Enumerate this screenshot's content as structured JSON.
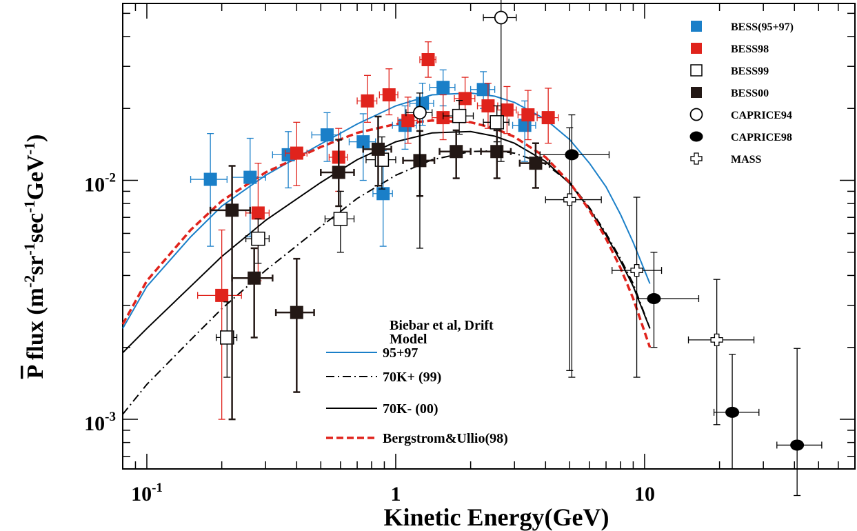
{
  "chart_data": {
    "type": "scatter",
    "title": "",
    "xlabel": "Kinetic Energy(GeV)",
    "ylabel_prefix": "P",
    "ylabel_rest": " flux (m",
    "ylabel_parts": [
      "-2",
      "sr",
      "-1",
      "sec",
      "-1",
      "GeV",
      "-1",
      ")"
    ],
    "x_scale": "log",
    "y_scale": "log",
    "xlim": [
      0.08,
      70
    ],
    "ylim": [
      0.00062,
      0.055
    ],
    "x_ticks": [
      {
        "value": 0.1,
        "label": "10",
        "exp": "-1"
      },
      {
        "value": 1,
        "label": "1",
        "exp": ""
      },
      {
        "value": 10,
        "label": "10",
        "exp": ""
      }
    ],
    "y_ticks": [
      {
        "value": 0.01,
        "label": "10",
        "exp": "-2"
      },
      {
        "value": 0.001,
        "label": "10",
        "exp": "-3"
      }
    ],
    "grid": false,
    "legend_position": "top-right",
    "series": [
      {
        "name": "BESS(95+97)",
        "marker": "square-filled",
        "color": "#1a7fc8",
        "points": [
          {
            "x": 0.18,
            "y": 0.0101,
            "xerr": [
              0.03,
              0.03
            ],
            "yerr": [
              0.0048,
              0.0056
            ]
          },
          {
            "x": 0.26,
            "y": 0.0103,
            "xerr": [
              0.04,
              0.04
            ],
            "yerr": [
              0.0045,
              0.0047
            ]
          },
          {
            "x": 0.37,
            "y": 0.0128,
            "xerr": [
              0.05,
              0.05
            ],
            "yerr": [
              0.0035,
              0.0032
            ]
          },
          {
            "x": 0.53,
            "y": 0.0155,
            "xerr": [
              0.07,
              0.07
            ],
            "yerr": [
              0.0035,
              0.0037
            ]
          },
          {
            "x": 0.74,
            "y": 0.0145,
            "xerr": [
              0.09,
              0.09
            ],
            "yerr": [
              0.0045,
              0.0045
            ]
          },
          {
            "x": 0.89,
            "y": 0.0088,
            "xerr": [
              0.08,
              0.08
            ],
            "yerr": [
              0.0035,
              0.0045
            ]
          },
          {
            "x": 1.09,
            "y": 0.017,
            "xerr": [
              0.12,
              0.12
            ],
            "yerr": [
              0.0035,
              0.0035
            ]
          },
          {
            "x": 1.28,
            "y": 0.021,
            "xerr": [
              0.14,
              0.14
            ],
            "yerr": [
              0.004,
              0.0045
            ]
          },
          {
            "x": 1.55,
            "y": 0.0245,
            "xerr": [
              0.18,
              0.18
            ],
            "yerr": [
              0.004,
              0.0045
            ]
          },
          {
            "x": 2.25,
            "y": 0.024,
            "xerr": [
              0.25,
              0.25
            ],
            "yerr": [
              0.004,
              0.0045
            ]
          },
          {
            "x": 3.3,
            "y": 0.017,
            "xerr": [
              0.35,
              0.35
            ],
            "yerr": [
              0.005,
              0.0045
            ]
          }
        ]
      },
      {
        "name": "BESS98",
        "marker": "square-filled",
        "color": "#e0231c",
        "points": [
          {
            "x": 0.2,
            "y": 0.0033,
            "xerr": [
              0.04,
              0.04
            ],
            "yerr": [
              0.0023,
              0.0029
            ]
          },
          {
            "x": 0.28,
            "y": 0.0073,
            "xerr": [
              0.03,
              0.03
            ],
            "yerr": [
              0.0035,
              0.0045
            ]
          },
          {
            "x": 0.4,
            "y": 0.013,
            "xerr": [
              0.04,
              0.04
            ],
            "yerr": [
              0.0035,
              0.0045
            ]
          },
          {
            "x": 0.59,
            "y": 0.0125,
            "xerr": [
              0.05,
              0.05
            ],
            "yerr": [
              0.0035,
              0.004
            ]
          },
          {
            "x": 0.77,
            "y": 0.0215,
            "xerr": [
              0.07,
              0.07
            ],
            "yerr": [
              0.004,
              0.006
            ]
          },
          {
            "x": 0.94,
            "y": 0.0228,
            "xerr": [
              0.08,
              0.08
            ],
            "yerr": [
              0.004,
              0.0065
            ]
          },
          {
            "x": 1.12,
            "y": 0.0178,
            "xerr": [
              0.1,
              0.1
            ],
            "yerr": [
              0.0035,
              0.0045
            ]
          },
          {
            "x": 1.35,
            "y": 0.032,
            "xerr": [
              0.1,
              0.1
            ],
            "yerr": [
              0.005,
              0.006
            ]
          },
          {
            "x": 1.55,
            "y": 0.0183,
            "xerr": [
              0.15,
              0.15
            ],
            "yerr": [
              0.0035,
              0.0045
            ]
          },
          {
            "x": 1.9,
            "y": 0.022,
            "xerr": [
              0.18,
              0.18
            ],
            "yerr": [
              0.0045,
              0.005
            ]
          },
          {
            "x": 2.35,
            "y": 0.0205,
            "xerr": [
              0.22,
              0.22
            ],
            "yerr": [
              0.004,
              0.005
            ]
          },
          {
            "x": 2.8,
            "y": 0.0197,
            "xerr": [
              0.25,
              0.25
            ],
            "yerr": [
              0.004,
              0.005
            ]
          },
          {
            "x": 3.4,
            "y": 0.0188,
            "xerr": [
              0.3,
              0.3
            ],
            "yerr": [
              0.004,
              0.005
            ]
          },
          {
            "x": 4.1,
            "y": 0.0183,
            "xerr": [
              0.4,
              0.4
            ],
            "yerr": [
              0.004,
              0.006
            ]
          }
        ]
      },
      {
        "name": "BESS99",
        "marker": "square-open",
        "color": "#000000",
        "points": [
          {
            "x": 0.21,
            "y": 0.0022,
            "xerr": [
              0.02,
              0.02
            ],
            "yerr": [
              0.0007,
              0.0009
            ]
          },
          {
            "x": 0.28,
            "y": 0.0057,
            "xerr": [
              0.03,
              0.03
            ],
            "yerr": [
              0.0012,
              0.0012
            ]
          },
          {
            "x": 0.6,
            "y": 0.0069,
            "xerr": [
              0.08,
              0.08
            ],
            "yerr": [
              0.0019,
              0.0021
            ]
          },
          {
            "x": 0.88,
            "y": 0.0122,
            "xerr": [
              0.12,
              0.12
            ],
            "yerr": [
              0.003,
              0.003
            ]
          },
          {
            "x": 1.8,
            "y": 0.0186,
            "xerr": [
              0.25,
              0.25
            ],
            "yerr": [
              0.003,
              0.003
            ]
          },
          {
            "x": 2.55,
            "y": 0.0175,
            "xerr": [
              0.3,
              0.3
            ],
            "yerr": [
              0.003,
              0.003
            ]
          }
        ]
      },
      {
        "name": "BESS00",
        "marker": "square-filled",
        "color": "#231815",
        "points": [
          {
            "x": 0.22,
            "y": 0.0075,
            "xerr": [
              0.04,
              0.04
            ],
            "yerr": [
              0.0065,
              0.004
            ]
          },
          {
            "x": 0.27,
            "y": 0.0039,
            "xerr": [
              0.05,
              0.05
            ],
            "yerr": [
              0.0017,
              0.0013
            ]
          },
          {
            "x": 0.4,
            "y": 0.0028,
            "xerr": [
              0.07,
              0.07
            ],
            "yerr": [
              0.0015,
              0.0019
            ]
          },
          {
            "x": 0.59,
            "y": 0.0108,
            "xerr": [
              0.09,
              0.09
            ],
            "yerr": [
              0.003,
              0.004
            ]
          },
          {
            "x": 0.85,
            "y": 0.0135,
            "xerr": [
              0.11,
              0.11
            ],
            "yerr": [
              0.004,
              0.005
            ]
          },
          {
            "x": 1.25,
            "y": 0.0121,
            "xerr": [
              0.18,
              0.18
            ],
            "yerr": [
              0.0035,
              0.004
            ]
          },
          {
            "x": 1.75,
            "y": 0.0132,
            "xerr": [
              0.25,
              0.25
            ],
            "yerr": [
              0.003,
              0.003
            ]
          },
          {
            "x": 2.55,
            "y": 0.0132,
            "xerr": [
              0.35,
              0.35
            ],
            "yerr": [
              0.003,
              0.003
            ]
          },
          {
            "x": 3.65,
            "y": 0.0118,
            "xerr": [
              0.5,
              0.5
            ],
            "yerr": [
              0.0025,
              0.0025
            ]
          }
        ]
      },
      {
        "name": "CAPRICE94",
        "marker": "circle-open",
        "color": "#000000",
        "points": [
          {
            "x": 1.25,
            "y": 0.0192,
            "xerr": [
              0.15,
              0.15
            ],
            "yerr": [
              0.014,
              0.004
            ]
          },
          {
            "x": 2.65,
            "y": 0.048,
            "xerr": [
              0.4,
              0.4
            ],
            "yerr": [
              0.036,
              0.02
            ]
          }
        ]
      },
      {
        "name": "CAPRICE98",
        "marker": "circle-filled",
        "color": "#000000",
        "points": [
          {
            "x": 5.1,
            "y": 0.0128,
            "xerr": [
              1.3,
              2.1
            ],
            "yerr": [
              0.0113,
              0.006
            ]
          },
          {
            "x": 10.9,
            "y": 0.0032,
            "xerr": [
              1.6,
              5.6
            ],
            "yerr": [
              0.0012,
              0.0018
            ]
          },
          {
            "x": 22.5,
            "y": 0.00107,
            "xerr": [
              3.5,
              6.3
            ],
            "yerr": [
              0.00045,
              0.0008
            ]
          },
          {
            "x": 41.0,
            "y": 0.00078,
            "xerr": [
              7.0,
              10.5
            ],
            "yerr": [
              0.0003,
              0.0012
            ]
          }
        ]
      },
      {
        "name": "MASS",
        "marker": "cross-open",
        "color": "#000000",
        "points": [
          {
            "x": 5.0,
            "y": 0.0083,
            "xerr": [
              1.0,
              1.7
            ],
            "yerr": [
              0.0067,
              0.0083
            ]
          },
          {
            "x": 9.3,
            "y": 0.0042,
            "xerr": [
              1.9,
              2.4
            ],
            "yerr": [
              0.0027,
              0.0043
            ]
          },
          {
            "x": 19.5,
            "y": 0.00215,
            "xerr": [
              4.5,
              8.0
            ],
            "yerr": [
              0.0012,
              0.0017
            ]
          }
        ]
      }
    ],
    "model_curves_title": "Biebar et al, Drift Model",
    "model_curves": [
      {
        "name": "95+97",
        "style": "solid",
        "color": "#1a7fc8",
        "points": [
          [
            0.08,
            0.0024
          ],
          [
            0.1,
            0.0036
          ],
          [
            0.15,
            0.0058
          ],
          [
            0.2,
            0.0078
          ],
          [
            0.3,
            0.0105
          ],
          [
            0.5,
            0.0142
          ],
          [
            0.7,
            0.0172
          ],
          [
            1.0,
            0.0205
          ],
          [
            1.4,
            0.0228
          ],
          [
            2.0,
            0.0232
          ],
          [
            2.5,
            0.0225
          ],
          [
            3.0,
            0.0212
          ],
          [
            4.0,
            0.018
          ],
          [
            5.0,
            0.0148
          ],
          [
            6.0,
            0.0118
          ],
          [
            7.0,
            0.0094
          ],
          [
            8.0,
            0.0072
          ],
          [
            9.0,
            0.0055
          ],
          [
            10.5,
            0.0037
          ]
        ]
      },
      {
        "name": "70K+ (99)",
        "style": "dashdot",
        "color": "#000000",
        "points": [
          [
            0.08,
            0.00105
          ],
          [
            0.1,
            0.0014
          ],
          [
            0.15,
            0.00215
          ],
          [
            0.2,
            0.0029
          ],
          [
            0.3,
            0.0042
          ],
          [
            0.5,
            0.0064
          ],
          [
            0.7,
            0.0084
          ],
          [
            1.0,
            0.0105
          ],
          [
            1.4,
            0.0122
          ],
          [
            2.0,
            0.0132
          ],
          [
            2.5,
            0.0133
          ],
          [
            3.0,
            0.013
          ],
          [
            4.0,
            0.0117
          ],
          [
            5.0,
            0.0098
          ],
          [
            6.0,
            0.0077
          ],
          [
            7.0,
            0.006
          ],
          [
            8.0,
            0.0047
          ],
          [
            9.0,
            0.0037
          ],
          [
            10.5,
            0.0024
          ]
        ]
      },
      {
        "name": "70K- (00)",
        "style": "solid",
        "color": "#000000",
        "points": [
          [
            0.08,
            0.0019
          ],
          [
            0.1,
            0.0024
          ],
          [
            0.15,
            0.0036
          ],
          [
            0.2,
            0.0048
          ],
          [
            0.3,
            0.0068
          ],
          [
            0.5,
            0.0098
          ],
          [
            0.7,
            0.0122
          ],
          [
            1.0,
            0.0145
          ],
          [
            1.4,
            0.0158
          ],
          [
            2.0,
            0.016
          ],
          [
            2.5,
            0.0153
          ],
          [
            3.0,
            0.0143
          ],
          [
            4.0,
            0.012
          ],
          [
            5.0,
            0.0097
          ],
          [
            6.0,
            0.0076
          ],
          [
            7.0,
            0.0059
          ],
          [
            8.0,
            0.0046
          ],
          [
            9.0,
            0.0036
          ],
          [
            10.5,
            0.0024
          ]
        ]
      },
      {
        "name": "Bergstrom&Ullio(98)",
        "style": "dashed",
        "color": "#e0231c",
        "points": [
          [
            0.08,
            0.0025
          ],
          [
            0.1,
            0.0038
          ],
          [
            0.15,
            0.0062
          ],
          [
            0.2,
            0.0082
          ],
          [
            0.3,
            0.0108
          ],
          [
            0.5,
            0.0138
          ],
          [
            0.7,
            0.0158
          ],
          [
            1.0,
            0.0172
          ],
          [
            1.4,
            0.0178
          ],
          [
            2.0,
            0.0175
          ],
          [
            2.5,
            0.0165
          ],
          [
            3.0,
            0.0152
          ],
          [
            4.0,
            0.0125
          ],
          [
            5.0,
            0.0098
          ],
          [
            6.0,
            0.0075
          ],
          [
            7.0,
            0.0057
          ],
          [
            8.0,
            0.0043
          ],
          [
            9.0,
            0.0032
          ],
          [
            10.5,
            0.002
          ]
        ]
      }
    ]
  }
}
